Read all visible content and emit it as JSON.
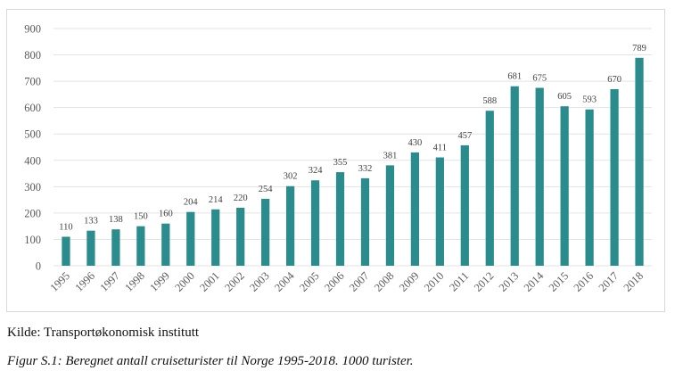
{
  "chart_data": {
    "type": "bar",
    "categories": [
      "1995",
      "1996",
      "1997",
      "1998",
      "1999",
      "2000",
      "2001",
      "2002",
      "2003",
      "2004",
      "2005",
      "2006",
      "2007",
      "2008",
      "2009",
      "2010",
      "2011",
      "2012",
      "2013",
      "2014",
      "2015",
      "2016",
      "2017",
      "2018"
    ],
    "values": [
      110,
      133,
      138,
      150,
      160,
      204,
      214,
      220,
      254,
      302,
      324,
      355,
      332,
      381,
      430,
      411,
      457,
      588,
      681,
      675,
      605,
      593,
      670,
      789
    ],
    "ylim": [
      0,
      900
    ],
    "yticks": [
      0,
      100,
      200,
      300,
      400,
      500,
      600,
      700,
      800,
      900
    ],
    "grid": true,
    "bar_color": "#2a8c8c",
    "title": "",
    "xlabel": "",
    "ylabel": ""
  },
  "source": "Kilde: Transportøkonomisk institutt",
  "caption": "Figur S.1: Beregnet antall cruiseturister til Norge 1995-2018. 1000 turister."
}
